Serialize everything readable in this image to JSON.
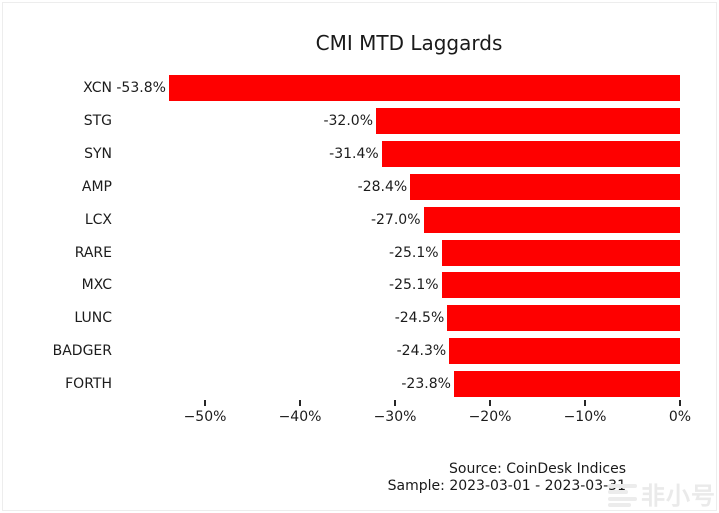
{
  "title": "CMI MTD Laggards",
  "chart_data": {
    "type": "bar",
    "orientation": "horizontal",
    "title": "CMI MTD Laggards",
    "categories": [
      "XCN",
      "STG",
      "SYN",
      "AMP",
      "LCX",
      "RARE",
      "MXC",
      "LUNC",
      "BADGER",
      "FORTH"
    ],
    "values": [
      -53.8,
      -32.0,
      -31.4,
      -28.4,
      -27.0,
      -25.1,
      -25.1,
      -24.5,
      -24.3,
      -23.8
    ],
    "bar_labels": [
      "-53.8%",
      "-32.0%",
      "-31.4%",
      "-28.4%",
      "-27.0%",
      "-25.1%",
      "-25.1%",
      "-24.5%",
      "-24.3%",
      "-23.8%"
    ],
    "x_tick_values": [
      -50,
      -40,
      -30,
      -20,
      -10,
      0
    ],
    "x_tick_labels": [
      "−50%",
      "−40%",
      "−30%",
      "−20%",
      "−10%",
      "0%"
    ],
    "xlim": [
      -57,
      0
    ],
    "grid": false,
    "legend": null,
    "bar_color": "#fe0000",
    "source_note": "Source: CoinDesk Indices",
    "sample_note": "Sample: 2023-03-01 - 2023-03-31"
  },
  "footer": {
    "source": "Source: CoinDesk Indices",
    "sample": "Sample: 2023-03-01 - 2023-03-31"
  },
  "watermark": {
    "text": "非小号",
    "logo": "feixiaohao-logo"
  },
  "colors": {
    "bar": "#fe0000",
    "title_text": "#1a1a1a",
    "tick_text": "#1c1c1c",
    "watermark": "#eaeaea",
    "background": "#ffffff"
  }
}
